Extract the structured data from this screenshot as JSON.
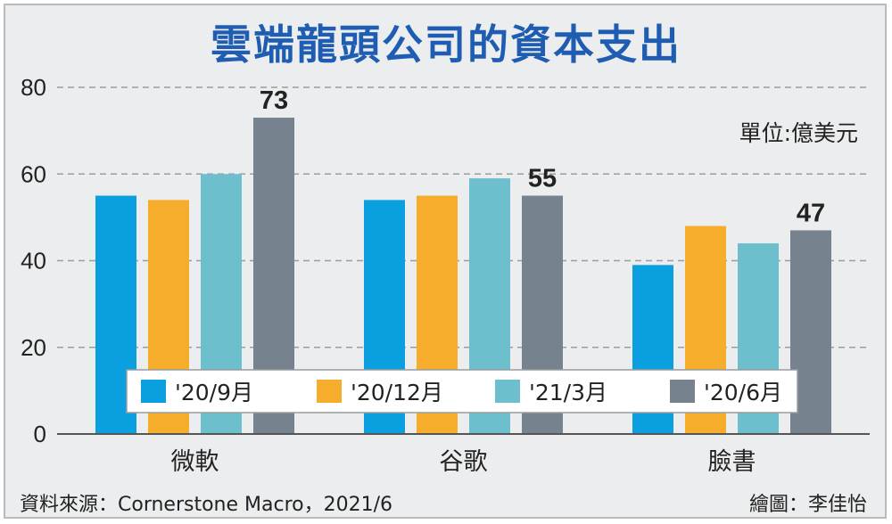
{
  "chart_data": {
    "type": "bar",
    "title": "雲端龍頭公司的資本支出",
    "unit": "單位:億美元",
    "categories": [
      "微軟",
      "谷歌",
      "臉書"
    ],
    "series": [
      {
        "name": "'20/9月",
        "color": "#0aa0e0",
        "values": [
          55,
          54,
          39
        ]
      },
      {
        "name": "'20/12月",
        "color": "#f6ad2c",
        "values": [
          54,
          55,
          48
        ]
      },
      {
        "name": "'21/3月",
        "color": "#6dbfcd",
        "values": [
          60,
          59,
          44
        ]
      },
      {
        "name": "'20/6月",
        "color": "#76838e",
        "values": [
          73,
          55,
          47
        ]
      }
    ],
    "data_labels": [
      "73",
      "55",
      "47"
    ],
    "ylim": [
      0,
      80
    ],
    "yticks": [
      0,
      20,
      40,
      60,
      80
    ],
    "grid": true,
    "legend_position": "bottom"
  },
  "footer": {
    "source": "資料來源：Cornerstone Macro，2021/6",
    "credit": "繪圖：李佳怡"
  }
}
